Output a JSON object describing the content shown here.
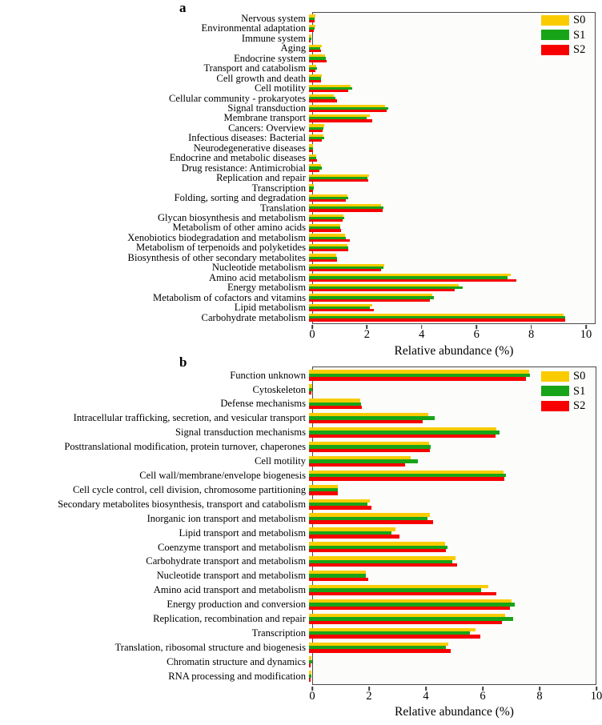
{
  "figure": {
    "axis_label": "Relative abundance (%)"
  },
  "legend": {
    "entries": [
      {
        "label": "S0",
        "color": "#FACC00"
      },
      {
        "label": "S1",
        "color": "#18A418"
      },
      {
        "label": "S2",
        "color": "#F60000"
      }
    ]
  },
  "chart_data": [
    {
      "type": "bar",
      "orientation": "horizontal",
      "panel_label": "a",
      "xlabel": "Relative abundance (%)",
      "xlim": [
        0,
        10
      ],
      "xticks": [
        0,
        2,
        4,
        6,
        8,
        10
      ],
      "axis_max_display": 10.35,
      "grid": false,
      "legend_position": "top-right",
      "categories": [
        "Nervous system",
        "Environmental adaptation",
        "Immune system",
        "Aging",
        "Endocrine system",
        "Transport and catabolism",
        "Cell growth and death",
        "Cell motility",
        "Cellular community - prokaryotes",
        "Signal transduction",
        "Membrane transport",
        "Cancers: Overview",
        "Infectious diseases: Bacterial",
        "Neurodegenerative diseases",
        "Endocrine and metabolic diseases",
        "Drug resistance: Antimicrobial",
        "Replication and repair",
        "Transcription",
        "Folding, sorting and degradation",
        "Translation",
        "Glycan biosynthesis and metabolism",
        "Metabolism of other amino acids",
        "Xenobiotics biodegradation and metabolism",
        "Metabolism of terpenoids and polyketides",
        "Biosynthesis of other secondary metabolites",
        "Nucleotide metabolism",
        "Amino acid metabolism",
        "Energy metabolism",
        "Metabolism of cofactors and vitamins",
        "Lipid metabolism",
        "Carbohydrate metabolism"
      ],
      "series": [
        {
          "name": "S0",
          "color": "#FACC00",
          "values": [
            0.22,
            0.22,
            0.08,
            0.47,
            0.57,
            0.26,
            0.46,
            1.49,
            0.91,
            2.76,
            2.19,
            0.54,
            0.52,
            0.15,
            0.26,
            0.42,
            2.16,
            0.17,
            1.39,
            2.61,
            1.25,
            1.14,
            1.3,
            1.39,
            0.97,
            2.73,
            7.29,
            5.41,
            4.45,
            2.27,
            9.19
          ]
        },
        {
          "name": "S1",
          "color": "#18A418",
          "values": [
            0.21,
            0.21,
            0.08,
            0.41,
            0.61,
            0.29,
            0.44,
            1.56,
            0.95,
            2.86,
            2.08,
            0.52,
            0.54,
            0.15,
            0.27,
            0.45,
            2.11,
            0.17,
            1.41,
            2.7,
            1.27,
            1.13,
            1.34,
            1.41,
            1.02,
            2.68,
            7.16,
            5.56,
            4.51,
            2.21,
            9.24
          ]
        },
        {
          "name": "S2",
          "color": "#F60000",
          "values": [
            0.2,
            0.18,
            0.06,
            0.42,
            0.63,
            0.24,
            0.42,
            1.41,
            1.02,
            2.8,
            2.29,
            0.49,
            0.45,
            0.14,
            0.29,
            0.39,
            2.14,
            0.15,
            1.32,
            2.65,
            1.22,
            1.17,
            1.46,
            1.43,
            1.0,
            2.61,
            7.48,
            5.26,
            4.36,
            2.34,
            9.26
          ]
        }
      ]
    },
    {
      "type": "bar",
      "orientation": "horizontal",
      "panel_label": "b",
      "xlabel": "Relative abundance (%)",
      "xlim": [
        0,
        10
      ],
      "xticks": [
        0,
        2,
        4,
        6,
        8,
        10
      ],
      "axis_max_display": 10.0,
      "grid": false,
      "legend_position": "top-right",
      "categories": [
        "Function unknown",
        "Cytoskeleton",
        "Defense mechanisms",
        "Intracellular trafficking, secretion, and vesicular transport",
        "Signal transduction mechanisms",
        "Posttranslational modification, protein turnover, chaperones",
        "Cell motility",
        "Cell wall/membrane/envelope biogenesis",
        "Cell cycle control, cell division, chromosome partitioning",
        "Secondary metabolites biosynthesis, transport and catabolism",
        "Inorganic ion transport and metabolism",
        "Lipid transport and metabolism",
        "Coenzyme transport and metabolism",
        "Carbohydrate transport and metabolism",
        "Nucleotide transport and metabolism",
        "Amino acid transport and metabolism",
        "Energy production and conversion",
        "Replication, recombination and repair",
        "Transcription",
        "Translation, ribosomal structure and biogenesis",
        "Chromatin structure and dynamics",
        "RNA processing and modification"
      ],
      "series": [
        {
          "name": "S0",
          "color": "#FACC00",
          "values": [
            7.65,
            0.1,
            1.78,
            4.15,
            6.53,
            4.18,
            3.55,
            6.78,
            0.99,
            2.11,
            4.21,
            3.02,
            4.74,
            5.1,
            1.97,
            6.24,
            7.04,
            6.83,
            5.79,
            4.84,
            0.08,
            0.07
          ]
        },
        {
          "name": "S1",
          "color": "#18A418",
          "values": [
            7.68,
            0.12,
            1.81,
            4.37,
            6.64,
            4.23,
            3.78,
            6.85,
            1.01,
            2.04,
            4.13,
            2.88,
            4.82,
            4.98,
            1.97,
            6.0,
            7.16,
            7.09,
            5.61,
            4.76,
            0.1,
            0.08
          ]
        },
        {
          "name": "S2",
          "color": "#F60000",
          "values": [
            7.55,
            0.08,
            1.83,
            3.96,
            6.5,
            4.2,
            3.33,
            6.8,
            1.0,
            2.18,
            4.32,
            3.15,
            4.76,
            5.16,
            2.05,
            6.53,
            7.0,
            6.71,
            5.96,
            4.93,
            0.06,
            0.05
          ]
        }
      ]
    }
  ]
}
